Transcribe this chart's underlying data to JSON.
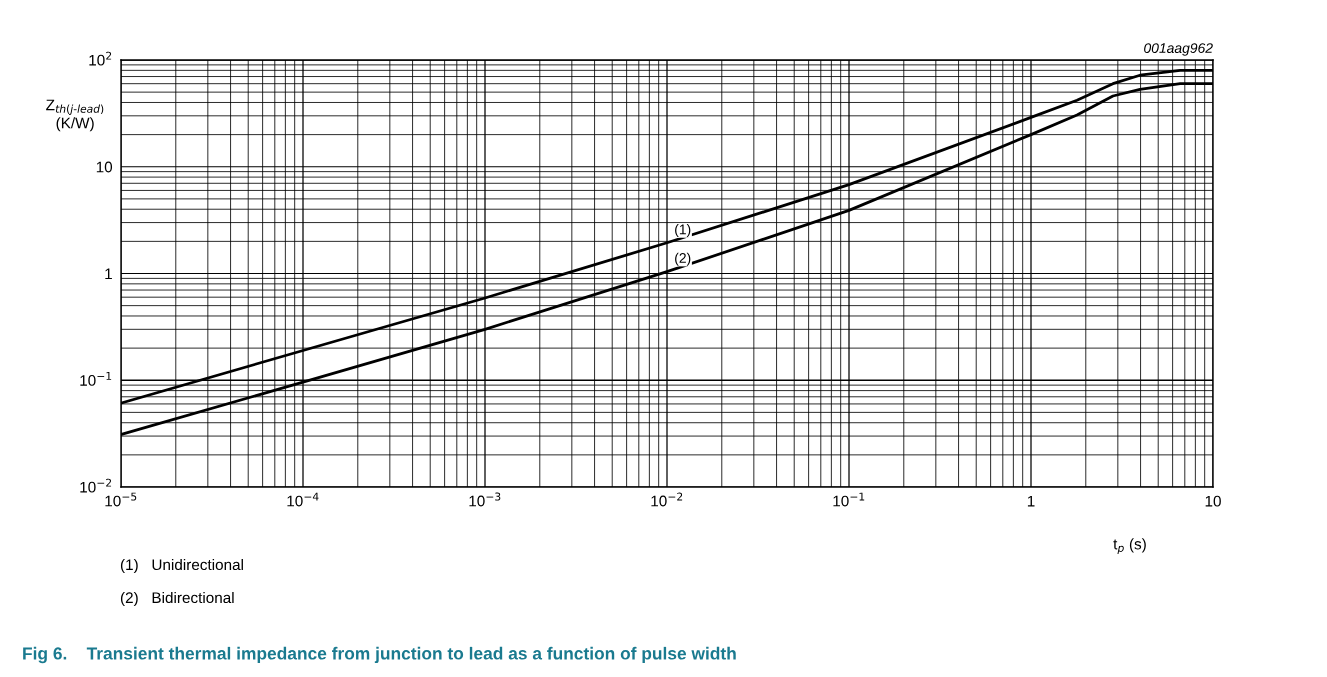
{
  "chart_data": {
    "type": "line",
    "title": "Fig 6.    Transient thermal impedance from junction to lead as a function of pulse width",
    "xlabel": "t$_{p}$ (s)",
    "ylabel": "Z$_{th(j-lead)}$\n(K/W)",
    "log": "xy",
    "grid": true,
    "legend": false,
    "marker": "none",
    "line_style": "solid",
    "xlim": [
      1e-05,
      10
    ],
    "ylim": [
      0.01,
      100
    ],
    "xticks": [
      {
        "value": 1e-05,
        "label": "10$^{−5}$"
      },
      {
        "value": 0.0001,
        "label": "10$^{−4}$"
      },
      {
        "value": 0.001,
        "label": "10$^{−3}$"
      },
      {
        "value": 0.01,
        "label": "10$^{−2}$"
      },
      {
        "value": 0.1,
        "label": "10$^{−1}$"
      },
      1,
      10
    ],
    "yticks": [
      {
        "value": 0.01,
        "label": "10$^{−2}$"
      },
      {
        "value": 0.1,
        "label": "10$^{−1}$"
      },
      1,
      10,
      {
        "value": 100,
        "label": "10$^{2}$"
      }
    ],
    "series": [
      {
        "name": "(1)",
        "color": "#000000",
        "x": [
          1e-05,
          0.0001,
          0.001,
          0.01,
          0.1,
          1,
          1.79,
          2.82,
          3.97,
          6.6,
          10
        ],
        "values": [
          0.061,
          0.19,
          0.59,
          1.94,
          6.8,
          29,
          42,
          60,
          72,
          80,
          80
        ]
      },
      {
        "name": "(2)",
        "color": "#000000",
        "x": [
          1e-05,
          0.0001,
          0.001,
          0.01,
          0.1,
          1,
          1.79,
          2.82,
          3.97,
          6.6,
          10
        ],
        "values": [
          0.031,
          0.096,
          0.3,
          1.04,
          3.9,
          20,
          30.5,
          46,
          53,
          60,
          60
        ]
      }
    ],
    "annotations": [
      "001aag962",
      "(1)   Unidirectional",
      "(2)   Bidirectional"
    ]
  }
}
